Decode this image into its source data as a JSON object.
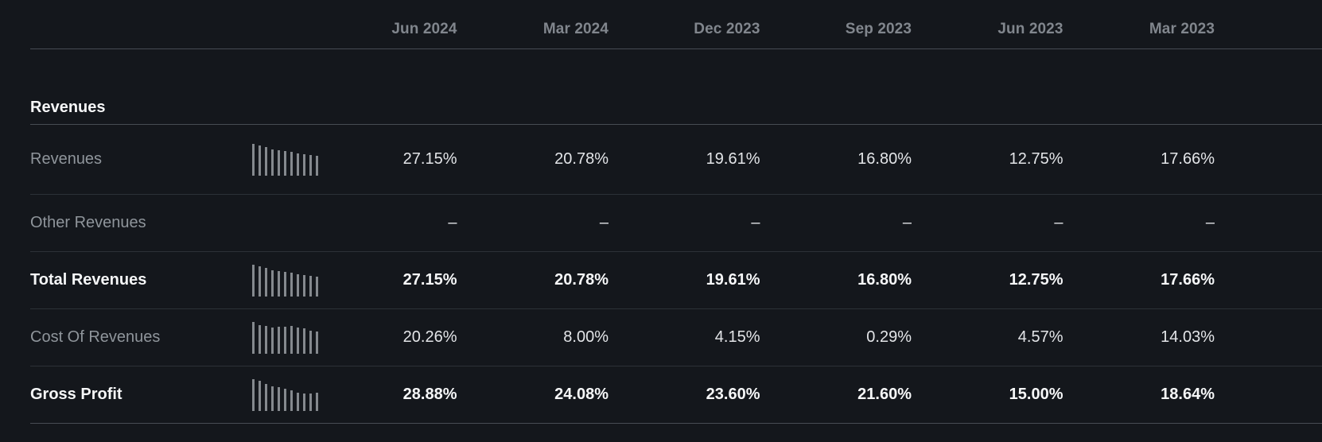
{
  "theme": {
    "bg": "#14171c",
    "header_text": "#81868d",
    "label_text": "#8f959b",
    "value_text": "#e3e5e8",
    "emphasis_text": "#f6f7f8",
    "divider_strong": "#474c53",
    "divider_subtle": "#2c3137",
    "spark_bar": "#85898e"
  },
  "table": {
    "section_title": "Revenues",
    "columns": [
      "Jun 2024",
      "Mar 2024",
      "Dec 2023",
      "Sep 2023",
      "Jun 2023",
      "Mar 2023"
    ],
    "rows": [
      {
        "label": "Revenues",
        "emphasis": false,
        "values": [
          "27.15%",
          "20.78%",
          "19.61%",
          "16.80%",
          "12.75%",
          "17.66%"
        ],
        "sparkline": [
          1.0,
          0.94,
          0.89,
          0.82,
          0.8,
          0.77,
          0.74,
          0.69,
          0.66,
          0.64,
          0.61
        ]
      },
      {
        "label": "Other Revenues",
        "emphasis": false,
        "values": [
          "–",
          "–",
          "–",
          "–",
          "–",
          "–"
        ],
        "sparkline": []
      },
      {
        "label": "Total Revenues",
        "emphasis": true,
        "values": [
          "27.15%",
          "20.78%",
          "19.61%",
          "16.80%",
          "12.75%",
          "17.66%"
        ],
        "sparkline": [
          1.0,
          0.94,
          0.89,
          0.82,
          0.8,
          0.77,
          0.74,
          0.69,
          0.66,
          0.64,
          0.61
        ]
      },
      {
        "label": "Cost Of Revenues",
        "emphasis": false,
        "values": [
          "20.26%",
          "8.00%",
          "4.15%",
          "0.29%",
          "4.57%",
          "14.03%"
        ],
        "sparkline": [
          1.0,
          0.9,
          0.86,
          0.82,
          0.83,
          0.85,
          0.86,
          0.82,
          0.78,
          0.72,
          0.68
        ]
      },
      {
        "label": "Gross Profit",
        "emphasis": true,
        "values": [
          "28.88%",
          "24.08%",
          "23.60%",
          "21.60%",
          "15.00%",
          "18.64%"
        ],
        "sparkline": [
          1.0,
          0.93,
          0.84,
          0.77,
          0.73,
          0.68,
          0.65,
          0.56,
          0.53,
          0.55,
          0.56
        ]
      }
    ]
  }
}
